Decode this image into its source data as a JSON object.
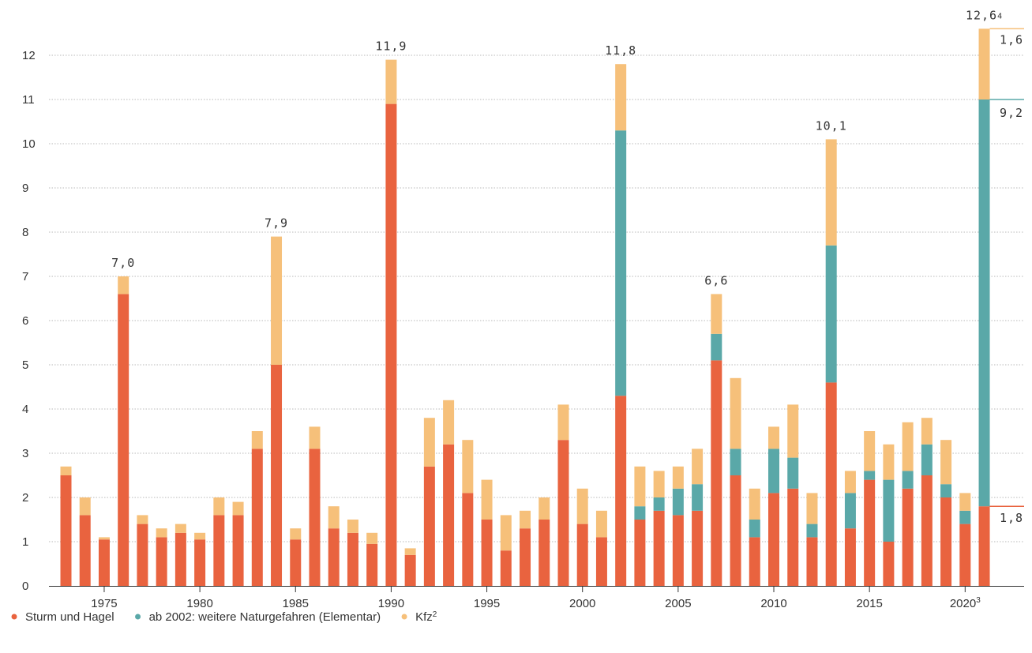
{
  "chart_data": {
    "type": "bar",
    "stacked": true,
    "ylim": [
      0,
      12.6
    ],
    "y_ticks": [
      "0",
      "1",
      "2",
      "3",
      "4",
      "5",
      "6",
      "7",
      "8",
      "9",
      "10",
      "11",
      "12"
    ],
    "x": [
      1973,
      1974,
      1975,
      1976,
      1977,
      1978,
      1979,
      1980,
      1981,
      1982,
      1983,
      1984,
      1985,
      1986,
      1987,
      1988,
      1989,
      1990,
      1991,
      1992,
      1993,
      1994,
      1995,
      1996,
      1997,
      1998,
      1999,
      2000,
      2001,
      2002,
      2003,
      2004,
      2005,
      2006,
      2007,
      2008,
      2009,
      2010,
      2011,
      2012,
      2013,
      2014,
      2015,
      2016,
      2017,
      2018,
      2019,
      2020,
      2021
    ],
    "x_ticks": [
      {
        "year": 1975,
        "label": "1975",
        "sup": ""
      },
      {
        "year": 1980,
        "label": "1980",
        "sup": ""
      },
      {
        "year": 1985,
        "label": "1985",
        "sup": ""
      },
      {
        "year": 1990,
        "label": "1990",
        "sup": ""
      },
      {
        "year": 1995,
        "label": "1995",
        "sup": ""
      },
      {
        "year": 2000,
        "label": "2000",
        "sup": ""
      },
      {
        "year": 2005,
        "label": "2005",
        "sup": ""
      },
      {
        "year": 2010,
        "label": "2010",
        "sup": ""
      },
      {
        "year": 2015,
        "label": "2015",
        "sup": ""
      },
      {
        "year": 2020,
        "label": "2020",
        "sup": "3"
      }
    ],
    "series": [
      {
        "key": "sturm",
        "color": "#e9633f",
        "values": [
          2.5,
          1.6,
          1.05,
          6.6,
          1.4,
          1.1,
          1.2,
          1.05,
          1.6,
          1.6,
          3.1,
          5.0,
          1.05,
          3.1,
          1.3,
          1.2,
          0.95,
          10.9,
          0.7,
          2.7,
          3.2,
          2.1,
          1.5,
          0.8,
          1.3,
          1.5,
          3.3,
          1.4,
          1.1,
          4.3,
          1.5,
          1.7,
          1.6,
          1.7,
          5.1,
          2.5,
          1.1,
          2.1,
          2.2,
          1.1,
          4.6,
          1.3,
          2.4,
          1.0,
          2.2,
          2.5,
          2.0,
          1.4,
          1.8
        ]
      },
      {
        "key": "elementar",
        "color": "#5aa8a8",
        "values": [
          0,
          0,
          0,
          0,
          0,
          0,
          0,
          0,
          0,
          0,
          0,
          0,
          0,
          0,
          0,
          0,
          0,
          0,
          0,
          0,
          0,
          0,
          0,
          0,
          0,
          0,
          0,
          0,
          0,
          6.0,
          0.3,
          0.3,
          0.6,
          0.6,
          0.6,
          0.6,
          0.4,
          1.0,
          0.7,
          0.3,
          3.1,
          0.8,
          0.2,
          1.4,
          0.4,
          0.7,
          0.3,
          0.3,
          9.2
        ]
      },
      {
        "key": "kfz",
        "color": "#f6c07a",
        "values": [
          0.2,
          0.4,
          0.05,
          0.4,
          0.2,
          0.2,
          0.2,
          0.15,
          0.4,
          0.3,
          0.4,
          2.9,
          0.25,
          0.5,
          0.5,
          0.3,
          0.25,
          1.0,
          0.15,
          1.1,
          1.0,
          1.2,
          0.9,
          0.8,
          0.4,
          0.5,
          0.8,
          0.8,
          0.6,
          1.5,
          0.9,
          0.6,
          0.5,
          0.8,
          0.9,
          1.6,
          0.7,
          0.5,
          1.2,
          0.7,
          2.4,
          0.5,
          0.9,
          0.8,
          1.1,
          0.6,
          1.0,
          0.4,
          1.6
        ]
      }
    ],
    "value_labels": [
      {
        "year": 1976,
        "text": "7,0",
        "sup": ""
      },
      {
        "year": 1984,
        "text": "7,9",
        "sup": ""
      },
      {
        "year": 1990,
        "text": "11,9",
        "sup": ""
      },
      {
        "year": 2002,
        "text": "11,8",
        "sup": ""
      },
      {
        "year": 2007,
        "text": "6,6",
        "sup": ""
      },
      {
        "year": 2013,
        "text": "10,1",
        "sup": ""
      },
      {
        "year": 2021,
        "text": "12,6",
        "sup": "4"
      }
    ],
    "segment_labels": [
      {
        "key": "kfz",
        "text": "1,6"
      },
      {
        "key": "elementar",
        "text": "9,2"
      },
      {
        "key": "sturm",
        "text": "1,8"
      }
    ],
    "legend": [
      {
        "key": "sturm",
        "label": "Sturm und Hagel",
        "sup": ""
      },
      {
        "key": "elementar",
        "label": "ab 2002: weitere Naturgefahren (Elementar)",
        "sup": ""
      },
      {
        "key": "kfz",
        "label": "Kfz",
        "sup": "2"
      }
    ],
    "grid": true,
    "legend_position": "bottom-left"
  }
}
